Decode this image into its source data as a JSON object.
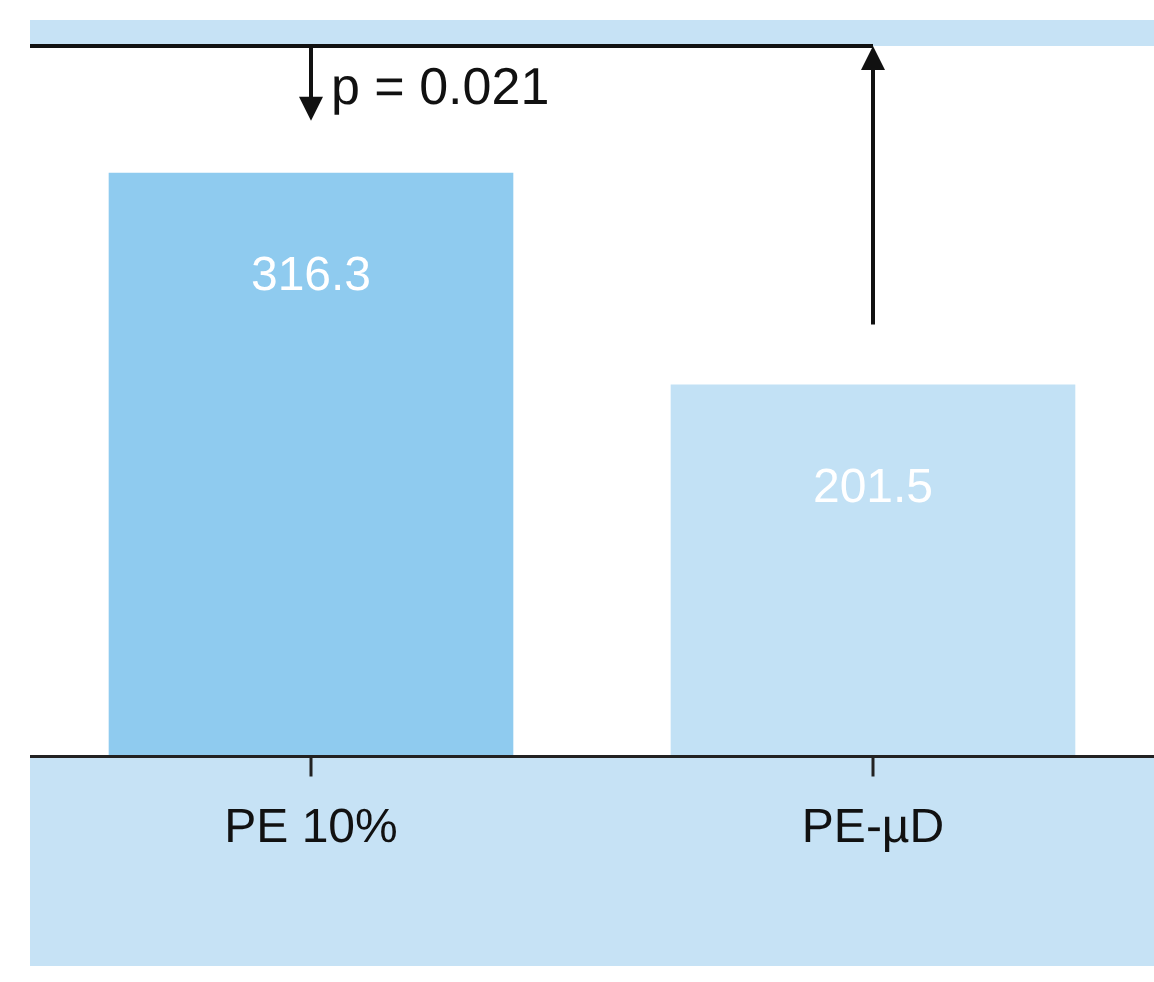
{
  "chart_data": {
    "type": "bar",
    "categories": [
      "PE 10%",
      "PE-µD"
    ],
    "values": [
      316.3,
      201.5
    ],
    "colors": [
      "#8fcbef",
      "#c2e1f5"
    ],
    "data_labels": true,
    "ylim": [
      0,
      385
    ],
    "annotations": [
      "p = 0.021"
    ]
  }
}
